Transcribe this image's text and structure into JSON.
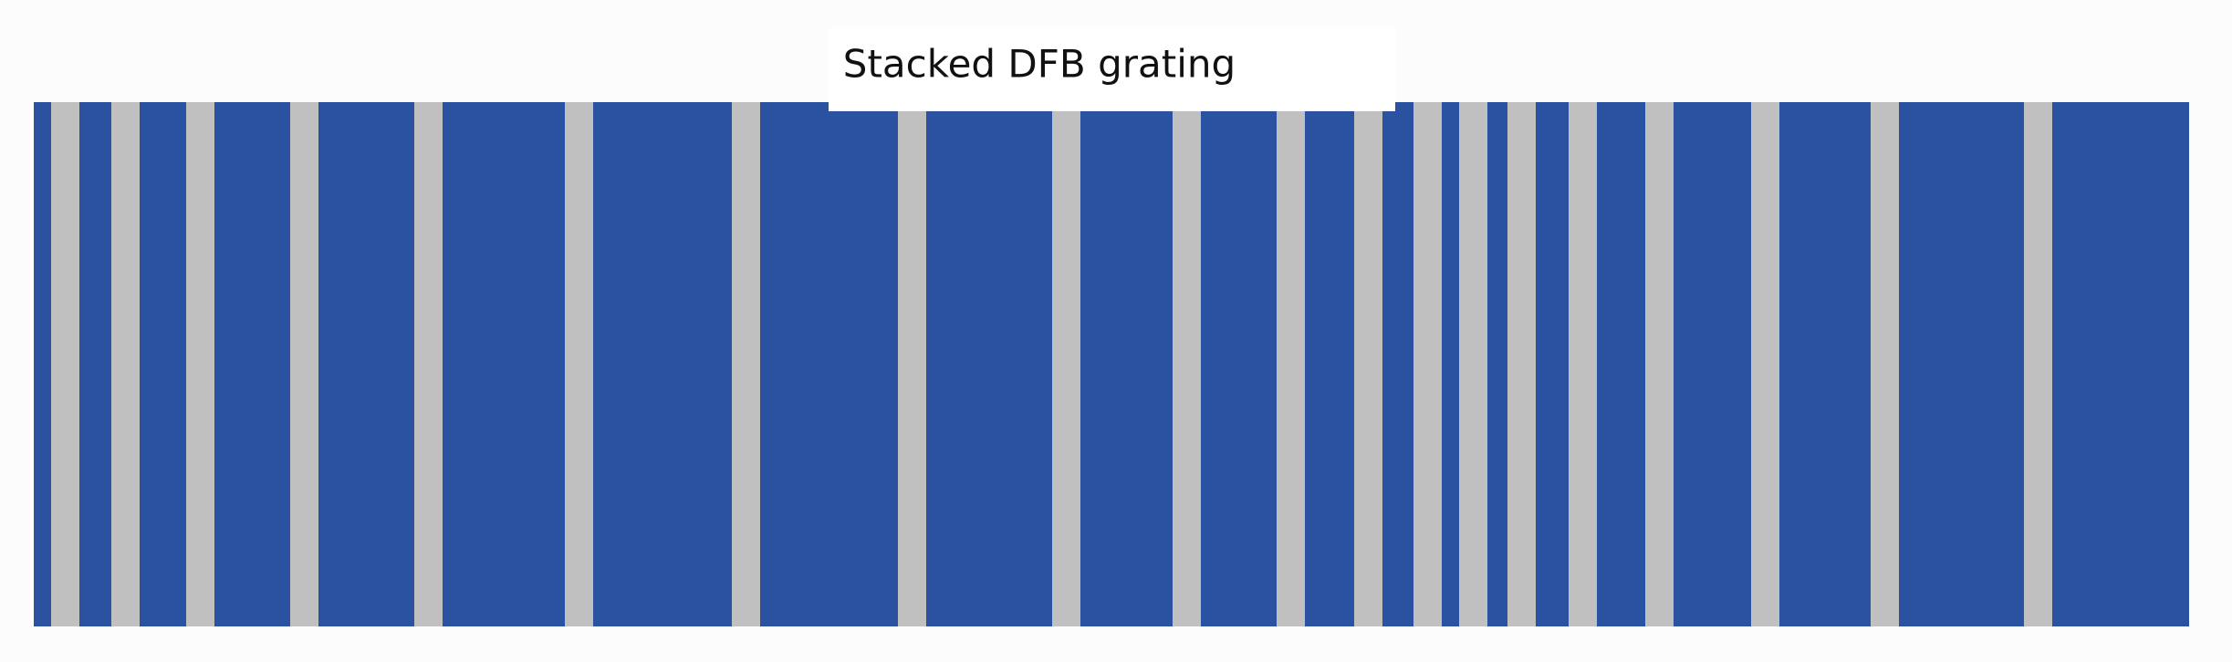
{
  "title": "Stacked DFB grating"
}
